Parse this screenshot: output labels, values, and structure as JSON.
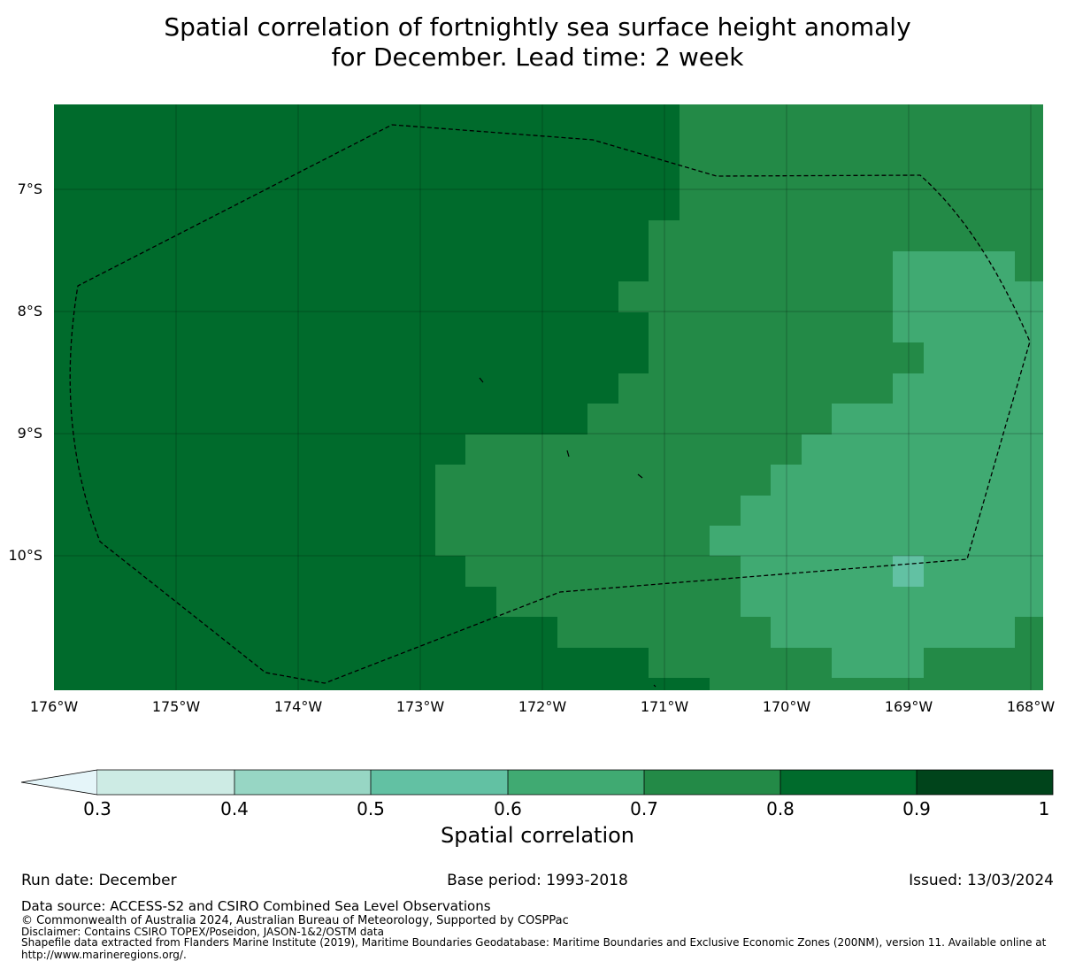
{
  "title": {
    "line1": "Spatial correlation of fortnightly sea surface height anomaly",
    "line2": "for December. Lead time: 2 week"
  },
  "map": {
    "lat_labels": [
      "7°S",
      "8°S",
      "9°S",
      "10°S"
    ],
    "lon_labels": [
      "176°W",
      "175°W",
      "174°W",
      "173°W",
      "172°W",
      "171°W",
      "170°W",
      "169°W",
      "168°W"
    ],
    "legend_colors": {
      "c04": "#cdebe4",
      "c05": "#97d6c4",
      "c06": "#62c1a3",
      "c07": "#40aa72",
      "c08": "#238a47",
      "c09": "#006b2c",
      "c10": "#00441b"
    },
    "zones": [
      {
        "name": "correlation 0.8-0.9",
        "color_key": "c09"
      },
      {
        "name": "correlation 0.7-0.8",
        "color_key": "c08"
      },
      {
        "name": "correlation 0.6-0.7",
        "color_key": "c07"
      },
      {
        "name": "correlation 0.5-0.6",
        "color_key": "c06"
      }
    ],
    "eez_boundary": "dashed line"
  },
  "colorbar": {
    "ticks": [
      "0.3",
      "0.4",
      "0.5",
      "0.6",
      "0.7",
      "0.8",
      "0.9",
      "1"
    ],
    "extend_color": "#e5f5f9",
    "label": "Spatial correlation"
  },
  "footer": {
    "run_date": "Run date: December",
    "base_period": "Base period: 1993-2018",
    "issued": "Issued: 13/03/2024",
    "data_source": "Data source: ACCESS-S2 and CSIRO Combined Sea Level Observations",
    "copyright": "© Commonwealth of Australia 2024, Australian Bureau of Meteorology, Supported by COSPPac",
    "disclaimer": "Disclaimer: Contains CSIRO TOPEX/Poseidon, JASON-1&2/OSTM data",
    "shapefile_line1": "Shapefile data extracted from Flanders Marine Institute (2019), Maritime Boundaries Geodatabase: Maritime Boundaries and Exclusive Economic Zones (200NM), version 11. Available online at",
    "shapefile_line2": "http://www.marineregions.org/."
  }
}
